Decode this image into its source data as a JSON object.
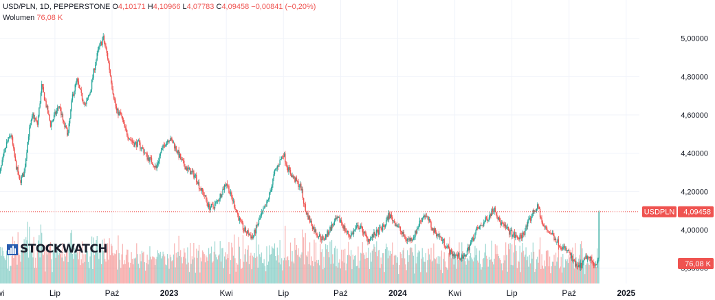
{
  "legend": {
    "symbol": "USD/PLN, 1D, PEPPERSTONE",
    "o_label": "O",
    "o_value": "4,10171",
    "h_label": "H",
    "h_value": "4,10966",
    "l_label": "L",
    "l_value": "4,07783",
    "c_label": "C",
    "c_value": "4,09458",
    "change": "−0,00841 (−0,20%)",
    "volume_label": "Wolumen",
    "volume_value": "76,08 K"
  },
  "watermark": "STOCKWATCH",
  "price_tag": {
    "symbol": "USDPLN",
    "value": "4,09458"
  },
  "volume_tag": "76,08 K",
  "colors": {
    "up": "#26a69a",
    "down": "#ef5350",
    "grid": "#f0f3fa",
    "text": "#131722"
  },
  "chart_data": {
    "type": "candlestick",
    "y_ticks": [
      "3,80000",
      "4,00000",
      "4,20000",
      "4,40000",
      "4,60000",
      "4,80000",
      "5,00000"
    ],
    "y_tick_values": [
      3.8,
      4.0,
      4.2,
      4.4,
      4.6,
      4.8,
      5.0
    ],
    "ylim": [
      3.72,
      5.2
    ],
    "x_ticks": [
      "Kwi",
      "Lip",
      "Paź",
      "2023",
      "Kwi",
      "Lip",
      "Paź",
      "2024",
      "Kwi",
      "Lip",
      "Paź",
      "2025"
    ],
    "x_tick_positions": [
      0,
      13,
      26,
      39,
      52,
      65,
      78,
      91,
      104,
      117,
      130,
      143
    ],
    "x_range": [
      0.5,
      146
    ],
    "last_close": 4.09458,
    "close_path_weeks": [
      0,
      1,
      2,
      3,
      4,
      5,
      6,
      7,
      8,
      9,
      10,
      11,
      12,
      13,
      14,
      15,
      16,
      17,
      18,
      19,
      20,
      21,
      22,
      23,
      24,
      25,
      26,
      27,
      28,
      29,
      30,
      31,
      32,
      33,
      34,
      35,
      36,
      37,
      38,
      39,
      40,
      41,
      42,
      43,
      44,
      45,
      46,
      47,
      48,
      49,
      50,
      51,
      52,
      53,
      54,
      55,
      56,
      57,
      58,
      59,
      60,
      61,
      62,
      63,
      64,
      65,
      66,
      67,
      68,
      69,
      70,
      71,
      72,
      73,
      74,
      75,
      76,
      77,
      78,
      79,
      80,
      81,
      82,
      83,
      84,
      85,
      86,
      87,
      88,
      89,
      90,
      91,
      92,
      93,
      94,
      95,
      96,
      97,
      98,
      99,
      100,
      101,
      102,
      103,
      104,
      105,
      106,
      107,
      108,
      109,
      110,
      111,
      112,
      113,
      114,
      115,
      116,
      117,
      118,
      119,
      120,
      121,
      122,
      123,
      124,
      125,
      126,
      127,
      128,
      129,
      130,
      131,
      132,
      133,
      134,
      135,
      136,
      137
    ],
    "close_path_values": [
      4.25,
      4.35,
      4.45,
      4.5,
      4.35,
      4.25,
      4.3,
      4.5,
      4.6,
      4.55,
      4.75,
      4.65,
      4.55,
      4.6,
      4.65,
      4.55,
      4.5,
      4.7,
      4.78,
      4.7,
      4.65,
      4.72,
      4.85,
      4.95,
      5.0,
      4.9,
      4.75,
      4.62,
      4.6,
      4.52,
      4.48,
      4.45,
      4.45,
      4.42,
      4.38,
      4.36,
      4.32,
      4.4,
      4.45,
      4.48,
      4.45,
      4.4,
      4.35,
      4.32,
      4.3,
      4.28,
      4.22,
      4.18,
      4.12,
      4.12,
      4.15,
      4.2,
      4.25,
      4.18,
      4.12,
      4.05,
      4.0,
      3.98,
      3.96,
      4.02,
      4.08,
      4.12,
      4.2,
      4.3,
      4.35,
      4.4,
      4.32,
      4.28,
      4.25,
      4.22,
      4.1,
      4.05,
      4.0,
      3.97,
      3.95,
      3.98,
      4.02,
      4.05,
      4.05,
      4.0,
      3.97,
      3.99,
      4.02,
      4.0,
      3.95,
      3.96,
      3.98,
      4.0,
      4.02,
      4.08,
      4.05,
      4.02,
      3.98,
      3.95,
      3.95,
      3.98,
      4.04,
      4.08,
      4.05,
      4.0,
      3.98,
      3.95,
      3.92,
      3.88,
      3.87,
      3.86,
      3.85,
      3.9,
      3.95,
      4.0,
      4.02,
      4.05,
      4.08,
      4.12,
      4.05,
      4.02,
      4.0,
      3.98,
      3.96,
      3.96,
      4.0,
      4.05,
      4.1,
      4.12,
      4.02,
      4.0,
      3.98,
      3.95,
      3.92,
      3.9,
      3.88,
      3.83,
      3.8,
      3.82,
      3.86,
      3.84,
      3.82,
      3.88
    ]
  }
}
